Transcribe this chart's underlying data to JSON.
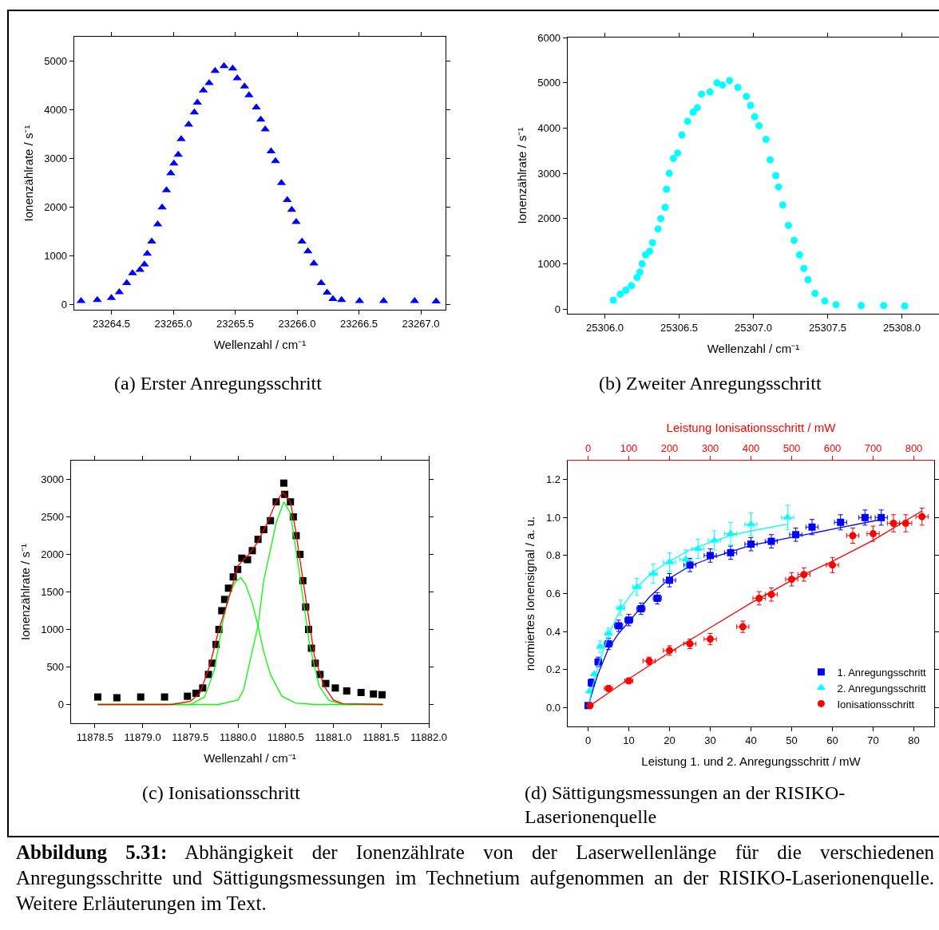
{
  "chart_data": [
    {
      "type": "scatter",
      "annotations": [
        "(a) Erster Anregungsschritt"
      ],
      "xlabel": "Wellenzahl / cm⁻¹",
      "ylabel": "Ionenzählrate / s⁻¹",
      "color": "#0000ff",
      "marker": "triangle",
      "grid": false,
      "legend": false,
      "x": [
        23264.255,
        23264.386,
        23264.5,
        23264.564,
        23264.624,
        23264.671,
        23264.731,
        23264.767,
        23264.79,
        23264.826,
        23264.874,
        23264.91,
        23264.945,
        23264.98,
        23265.005,
        23265.04,
        23265.064,
        23265.124,
        23265.17,
        23265.195,
        23265.243,
        23265.29,
        23265.338,
        23265.41,
        23265.48,
        23265.517,
        23265.576,
        23265.612,
        23265.671,
        23265.707,
        23265.743,
        23265.79,
        23265.826,
        23265.874,
        23265.921,
        23265.957,
        23265.993,
        23266.04,
        23266.088,
        23266.136,
        23266.195,
        23266.243,
        23266.29,
        23266.36,
        23266.505,
        23266.7,
        23266.95,
        23267.124
      ],
      "values": [
        80,
        100,
        140,
        260,
        450,
        650,
        720,
        830,
        1050,
        1300,
        1650,
        2000,
        2350,
        2700,
        2900,
        3080,
        3400,
        3700,
        3950,
        4150,
        4400,
        4550,
        4800,
        4900,
        4850,
        4650,
        4480,
        4300,
        4050,
        3800,
        3600,
        3150,
        2950,
        2500,
        2150,
        1950,
        1700,
        1300,
        1100,
        850,
        450,
        250,
        120,
        100,
        80,
        80,
        80,
        70
      ],
      "xlim": [
        23264.2,
        23267.2
      ],
      "xticks": [
        {
          "value": 23264.5,
          "label": "23264.5"
        },
        {
          "value": 23265,
          "label": "23265.0"
        },
        {
          "value": 23265.5,
          "label": "23265.5"
        },
        {
          "value": 23266,
          "label": "23266.0"
        },
        {
          "value": 23266.5,
          "label": "23266.5"
        },
        {
          "value": 23267,
          "label": "23267.0"
        }
      ],
      "ylim": [
        -100,
        5500
      ],
      "yticks": [
        0,
        1000,
        2000,
        3000,
        4000,
        5000
      ]
    },
    {
      "type": "scatter",
      "annotations": [
        "(b) Zweiter Anregungsschritt"
      ],
      "xlabel": "Wellenzahl / cm⁻¹",
      "ylabel": "Ionenzählrate / s⁻¹",
      "color": "#00ffff",
      "marker": "circle",
      "grid": false,
      "legend": false,
      "x": [
        25306.057,
        25306.104,
        25306.142,
        25306.179,
        25306.217,
        25306.236,
        25306.251,
        25306.274,
        25306.302,
        25306.321,
        25306.358,
        25306.377,
        25306.406,
        25306.415,
        25306.434,
        25306.462,
        25306.491,
        25306.519,
        25306.557,
        25306.594,
        25306.623,
        25306.651,
        25306.708,
        25306.755,
        25306.792,
        25306.84,
        25306.896,
        25306.953,
        25306.981,
        25307.009,
        25307.038,
        25307.085,
        25307.113,
        25307.151,
        25307.17,
        25307.198,
        25307.236,
        25307.274,
        25307.311,
        25307.34,
        25307.368,
        25307.415,
        25307.481,
        25307.557,
        25307.726,
        25307.877,
        25308.019
      ],
      "values": [
        200,
        330,
        420,
        520,
        700,
        820,
        1000,
        1200,
        1280,
        1470,
        1770,
        2000,
        2250,
        2650,
        3000,
        3330,
        3450,
        3850,
        4150,
        4350,
        4450,
        4750,
        4800,
        5000,
        4950,
        5050,
        4900,
        4700,
        4500,
        4250,
        4050,
        3750,
        3300,
        2950,
        2700,
        2300,
        1850,
        1520,
        1200,
        900,
        650,
        350,
        180,
        100,
        80,
        80,
        70
      ],
      "xlim": [
        25305.75,
        25308.25
      ],
      "xticks": [
        {
          "value": 25306,
          "label": "25306.0"
        },
        {
          "value": 25306.5,
          "label": "25306.5"
        },
        {
          "value": 25307,
          "label": "25307.0"
        },
        {
          "value": 25307.5,
          "label": "25307.5"
        },
        {
          "value": 25308,
          "label": "25308.0"
        }
      ],
      "ylim": [
        -100,
        6000
      ],
      "yticks": [
        0,
        1000,
        2000,
        3000,
        4000,
        5000,
        6000
      ]
    },
    {
      "type": "scatter",
      "annotations": [
        "(c) Ionisationsschritt"
      ],
      "xlabel": "Wellenzahl / cm⁻¹",
      "ylabel": "Ionenzählrate / s⁻¹",
      "grid": false,
      "legend": false,
      "series": [
        {
          "type": "scatter",
          "color": "#000000",
          "marker": "square",
          "x": [
            11878.53,
            11878.73,
            11878.98,
            11879.23,
            11879.47,
            11879.56,
            11879.63,
            11879.69,
            11879.73,
            11879.77,
            11879.8,
            11879.83,
            11879.86,
            11879.9,
            11879.95,
            11879.997,
            11880.04,
            11880.1,
            11880.15,
            11880.21,
            11880.27,
            11880.34,
            11880.4,
            11880.48,
            11880.49,
            11880.55,
            11880.58,
            11880.61,
            11880.65,
            11880.68,
            11880.71,
            11880.74,
            11880.77,
            11880.81,
            11880.86,
            11880.92,
            11881.02,
            11881.14,
            11881.29,
            11881.42,
            11881.51
          ],
          "values": [
            100,
            90,
            100,
            100,
            110,
            150,
            220,
            400,
            550,
            800,
            1000,
            1250,
            1400,
            1550,
            1700,
            1800,
            1950,
            1930,
            2050,
            2200,
            2330,
            2450,
            2700,
            2950,
            2800,
            2700,
            2500,
            2250,
            2000,
            1650,
            1300,
            1000,
            750,
            550,
            400,
            280,
            220,
            180,
            160,
            140,
            130
          ]
        },
        {
          "type": "line",
          "color": "#00ff00",
          "x": [
            11878.53,
            11879.5,
            11879.65,
            11879.75,
            11879.84,
            11879.9,
            11879.97,
            11880.03,
            11880.08,
            11880.15,
            11880.21,
            11880.27,
            11880.34,
            11880.46,
            11880.6,
            11880.8,
            11881.52
          ],
          "values": [
            0,
            0,
            100,
            450,
            1100,
            1430,
            1630,
            1690,
            1600,
            1350,
            1050,
            700,
            400,
            110,
            20,
            0,
            0
          ]
        },
        {
          "type": "line",
          "color": "#00ff00",
          "x": [
            11878.53,
            11879.8,
            11880,
            11880.06,
            11880.12,
            11880.21,
            11880.27,
            11880.4,
            11880.48,
            11880.55,
            11880.65,
            11880.75,
            11880.85,
            11880.95,
            11881.1,
            11881.52
          ],
          "values": [
            0,
            0,
            60,
            200,
            550,
            1050,
            1650,
            2420,
            2700,
            2550,
            1700,
            800,
            250,
            60,
            0,
            0
          ]
        },
        {
          "type": "line",
          "color": "#ff0000",
          "x": [
            11878.53,
            11879.3,
            11879.5,
            11879.6,
            11879.7,
            11879.8,
            11879.9,
            11880,
            11880.1,
            11880.2,
            11880.3,
            11880.4,
            11880.47,
            11880.55,
            11880.6,
            11880.7,
            11880.8,
            11880.9,
            11881,
            11881.1,
            11881.52
          ],
          "values": [
            0,
            0,
            40,
            150,
            500,
            1000,
            1400,
            1850,
            1980,
            2150,
            2400,
            2700,
            2830,
            2700,
            2350,
            1500,
            650,
            250,
            60,
            10,
            0
          ]
        }
      ],
      "xlim": [
        11878.25,
        11882
      ],
      "xticks": [
        {
          "value": 11878.5,
          "label": "11878.5"
        },
        {
          "value": 11879,
          "label": "11879.0"
        },
        {
          "value": 11879.5,
          "label": "11879.5"
        },
        {
          "value": 11880,
          "label": "11880.0"
        },
        {
          "value": 11880.5,
          "label": "11880.5"
        },
        {
          "value": 11881,
          "label": "11881.0"
        },
        {
          "value": 11881.5,
          "label": "11881.5"
        },
        {
          "value": 11882,
          "label": "11882.0"
        }
      ],
      "ylim": [
        -250,
        3250
      ],
      "yticks": [
        0,
        500,
        1000,
        1500,
        2000,
        2500,
        3000
      ]
    },
    {
      "type": "scatter",
      "annotations": [
        "(d) Sättigungsmessungen an der RISIKO-Laserionenquelle"
      ],
      "xlabel": "Leistung 1. und 2. Anregungsschritt / mW",
      "x2label": "Leistung Ionisationsschritt / mW",
      "ylabel": "normiertes Ionensignal / a. u.",
      "grid": false,
      "legend": "bottom right",
      "series": [
        {
          "type": "scatter",
          "name": "1. Anregungsschritt",
          "color": "#0000ff",
          "marker": "square",
          "x": [
            0,
            0.8,
            2.5,
            5,
            7.5,
            10,
            13,
            17,
            20,
            25,
            30,
            35,
            40,
            45,
            51,
            55,
            62,
            68,
            72
          ],
          "values": [
            0.01,
            0.13,
            0.24,
            0.335,
            0.43,
            0.46,
            0.52,
            0.575,
            0.67,
            0.75,
            0.8,
            0.815,
            0.86,
            0.875,
            0.91,
            0.95,
            0.975,
            1.0,
            1.0
          ],
          "errors": [
            null,
            0.02,
            0.025,
            0.03,
            0.03,
            0.03,
            0.03,
            0.03,
            0.035,
            0.035,
            0.035,
            0.035,
            0.035,
            0.035,
            0.035,
            0.04,
            0.04,
            0.04,
            0.04
          ],
          "xerrors": [
            null,
            null,
            0.8,
            1,
            1,
            1,
            1,
            1,
            1.5,
            1.5,
            1.5,
            1.5,
            1.5,
            1.5,
            1.5,
            1.5,
            1.5,
            1.5,
            1.5
          ]
        },
        {
          "type": "scatter",
          "name": "2. Anregungsschritt",
          "color": "#00ffff",
          "marker": "triangle",
          "x": [
            0.3,
            1.5,
            3,
            5,
            8,
            12,
            16,
            20,
            24,
            27,
            31,
            35,
            40,
            49
          ],
          "values": [
            0.085,
            0.175,
            0.32,
            0.39,
            0.525,
            0.635,
            0.705,
            0.765,
            0.78,
            0.835,
            0.88,
            0.915,
            0.965,
            1.0
          ],
          "errors": [
            null,
            null,
            0.03,
            0.03,
            0.04,
            0.045,
            0.05,
            0.05,
            0.05,
            0.05,
            0.05,
            0.06,
            0.06,
            0.065
          ],
          "xerrors": [
            null,
            null,
            0.5,
            0.8,
            1,
            1,
            1,
            1.5,
            1.5,
            1.5,
            1.5,
            1.5,
            1.5,
            1.5
          ]
        },
        {
          "type": "scatter",
          "name": "Ionisationsschritt",
          "color": "#ff0000",
          "marker": "circle",
          "axis": "x2",
          "x": [
            5,
            50,
            100,
            150,
            200,
            250,
            300,
            380,
            420,
            450,
            500,
            530,
            600,
            650,
            700,
            750,
            780,
            820
          ],
          "values": [
            0.01,
            0.1,
            0.14,
            0.245,
            0.3,
            0.335,
            0.36,
            0.425,
            0.575,
            0.595,
            0.675,
            0.7,
            0.75,
            0.905,
            0.915,
            0.97,
            0.97,
            1.005
          ],
          "errors": [
            null,
            0.015,
            0.015,
            0.02,
            0.025,
            0.025,
            0.03,
            0.03,
            0.035,
            0.035,
            0.035,
            0.035,
            0.04,
            0.04,
            0.04,
            0.045,
            0.045,
            0.045
          ],
          "xerrors": [
            null,
            10,
            10,
            15,
            15,
            15,
            15,
            15,
            15,
            15,
            15,
            15,
            15,
            15,
            15,
            15,
            15,
            15
          ]
        },
        {
          "type": "line",
          "color": "#0000ff",
          "x": [
            0,
            1,
            2.5,
            5,
            7.5,
            10,
            15,
            20,
            25,
            30,
            35,
            40,
            51,
            61.5,
            72
          ],
          "values": [
            0,
            0.08,
            0.18,
            0.31,
            0.39,
            0.45,
            0.58,
            0.68,
            0.745,
            0.786,
            0.82,
            0.854,
            0.9,
            0.945,
            0.99
          ]
        },
        {
          "type": "line",
          "color": "#00ffff",
          "x": [
            0,
            1,
            2.5,
            5,
            8,
            12,
            16,
            20,
            25,
            30,
            35,
            40,
            49
          ],
          "values": [
            0,
            0.1,
            0.22,
            0.38,
            0.52,
            0.635,
            0.715,
            0.77,
            0.83,
            0.87,
            0.905,
            0.93,
            0.965
          ]
        },
        {
          "type": "line",
          "color": "#ff0000",
          "axis": "x2",
          "x": [
            5,
            100,
            200,
            300,
            400,
            500,
            600,
            700,
            820
          ],
          "values": [
            0.01,
            0.15,
            0.29,
            0.42,
            0.55,
            0.67,
            0.77,
            0.88,
            1.035
          ]
        }
      ],
      "xlim": [
        -5,
        85
      ],
      "xticks": [
        0,
        10,
        20,
        30,
        40,
        50,
        60,
        70,
        80
      ],
      "x2lim": [
        -50,
        850
      ],
      "x2ticks": [
        0,
        100,
        200,
        300,
        400,
        500,
        600,
        700,
        800
      ],
      "ylim": [
        -0.1,
        1.3
      ],
      "yticks": [
        {
          "value": 0,
          "label": "0.0"
        },
        {
          "value": 0.2,
          "label": "0.2"
        },
        {
          "value": 0.4,
          "label": "0.4"
        },
        {
          "value": 0.6,
          "label": "0.6"
        },
        {
          "value": 0.8,
          "label": "0.8"
        },
        {
          "value": 1,
          "label": "1.0"
        },
        {
          "value": 1.2,
          "label": "1.2"
        }
      ]
    },
    {
      "type": "other",
      "annotations": [
        "Abbildung 5.31:",
        "Abhängigkeit der Ionenzählrate von der Laserwellenlänge für die verschiedenen Anregungsschritte und Sättigungsmessungen im Technetium aufgenommen an der RISIKO-Laserionenquelle. Weitere Erläuterungen im Text."
      ]
    }
  ]
}
